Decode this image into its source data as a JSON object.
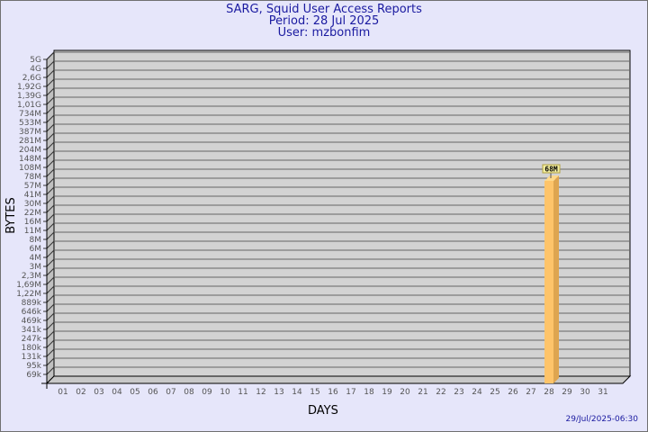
{
  "header": {
    "title": "SARG, Squid User Access Reports",
    "period": "Period: 28 Jul 2025",
    "user": "User: mzbonfim"
  },
  "footer_timestamp": "29/Jul/2025-06:30",
  "chart_data": {
    "type": "bar",
    "title": "SARG, Squid User Access Reports",
    "xlabel": "DAYS",
    "ylabel": "BYTES",
    "y_scale": "log",
    "y_ticks": [
      "5G",
      "4G",
      "2,6G",
      "1,92G",
      "1,39G",
      "1,01G",
      "734M",
      "533M",
      "387M",
      "281M",
      "204M",
      "148M",
      "108M",
      "78M",
      "57M",
      "41M",
      "30M",
      "22M",
      "16M",
      "11M",
      "8M",
      "6M",
      "4M",
      "3M",
      "2,3M",
      "1,69M",
      "1,22M",
      "889k",
      "646k",
      "469k",
      "341k",
      "247k",
      "180k",
      "131k",
      "95k",
      "69k"
    ],
    "categories": [
      "01",
      "02",
      "03",
      "04",
      "05",
      "06",
      "07",
      "08",
      "09",
      "10",
      "11",
      "12",
      "13",
      "14",
      "15",
      "16",
      "17",
      "18",
      "19",
      "20",
      "21",
      "22",
      "23",
      "24",
      "25",
      "26",
      "27",
      "28",
      "29",
      "30",
      "31"
    ],
    "bars": [
      {
        "day": "28",
        "value_label": "68M",
        "tick_position": 13.5
      }
    ],
    "grid": true,
    "colors": {
      "bar_front": "#fec46a",
      "bar_side": "#dea550",
      "plot_back": "#d3d3d3",
      "grid": "#666666",
      "title": "#1a1aa0"
    }
  }
}
